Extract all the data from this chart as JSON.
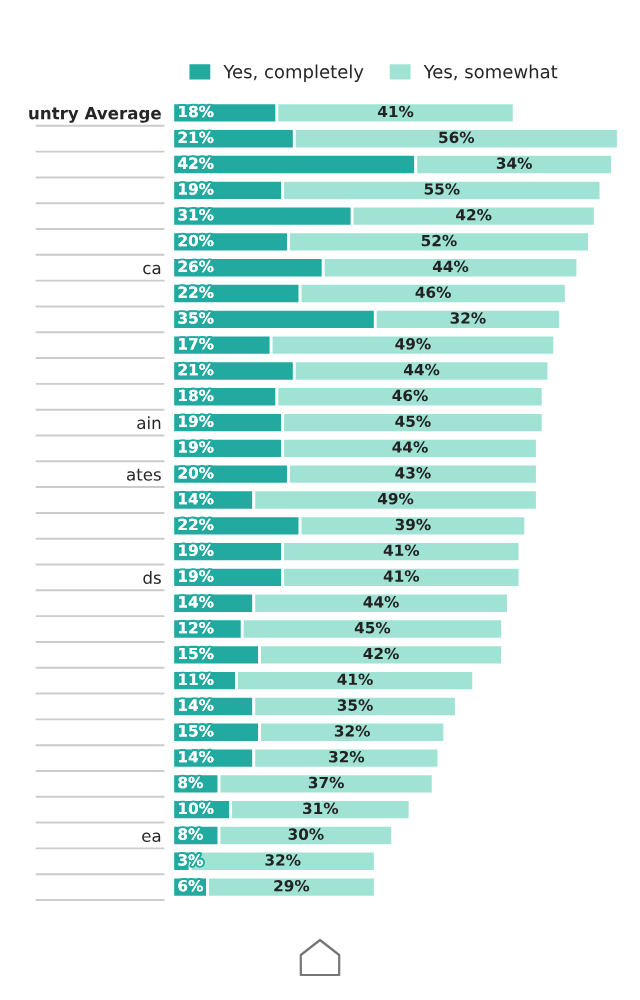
{
  "chart_data": {
    "type": "bar",
    "orientation": "horizontal",
    "stacked": true,
    "legend": "top",
    "grid": false,
    "categories": [
      "untry Average",
      null,
      null,
      null,
      null,
      null,
      "ca",
      null,
      null,
      null,
      null,
      null,
      "ain",
      null,
      "ates",
      null,
      null,
      null,
      "ds",
      null,
      null,
      null,
      null,
      null,
      null,
      null,
      null,
      null,
      "ea",
      null,
      null
    ],
    "series": [
      {
        "name": "Yes, completely",
        "color": "#22aaa0",
        "values": [
          18,
          21,
          42,
          19,
          31,
          20,
          26,
          22,
          35,
          17,
          21,
          18,
          19,
          19,
          20,
          14,
          22,
          19,
          19,
          14,
          12,
          15,
          11,
          14,
          15,
          14,
          8,
          10,
          8,
          3,
          6
        ],
        "value_labels": [
          "18%",
          "21%",
          "42%",
          "19%",
          "31%",
          "20%",
          "26%",
          "22%",
          "35%",
          "17%",
          "21%",
          "18%",
          "19%",
          "19%",
          "20%",
          "14%",
          "22%",
          "19%",
          "19%",
          "14%",
          "12%",
          "15%",
          "11%",
          "14%",
          "15%",
          "14%",
          "8%",
          "10%",
          "8%",
          "3%",
          "6%"
        ]
      },
      {
        "name": "Yes, somewhat",
        "color": "#a0e3d5",
        "values": [
          41,
          56,
          34,
          55,
          42,
          52,
          44,
          46,
          32,
          49,
          44,
          46,
          45,
          44,
          43,
          49,
          39,
          41,
          41,
          44,
          45,
          42,
          41,
          35,
          32,
          32,
          37,
          31,
          30,
          32,
          29
        ],
        "value_labels": [
          "41%",
          "56%",
          "34%",
          "55%",
          "42%",
          "52%",
          "44%",
          "46%",
          "32%",
          "49%",
          "44%",
          "46%",
          "45%",
          "44%",
          "43%",
          "49%",
          "39%",
          "41%",
          "41%",
          "44%",
          "45%",
          "42%",
          "41%",
          "35%",
          "32%",
          "32%",
          "37%",
          "31%",
          "30%",
          "32%",
          "29%"
        ]
      }
    ]
  }
}
